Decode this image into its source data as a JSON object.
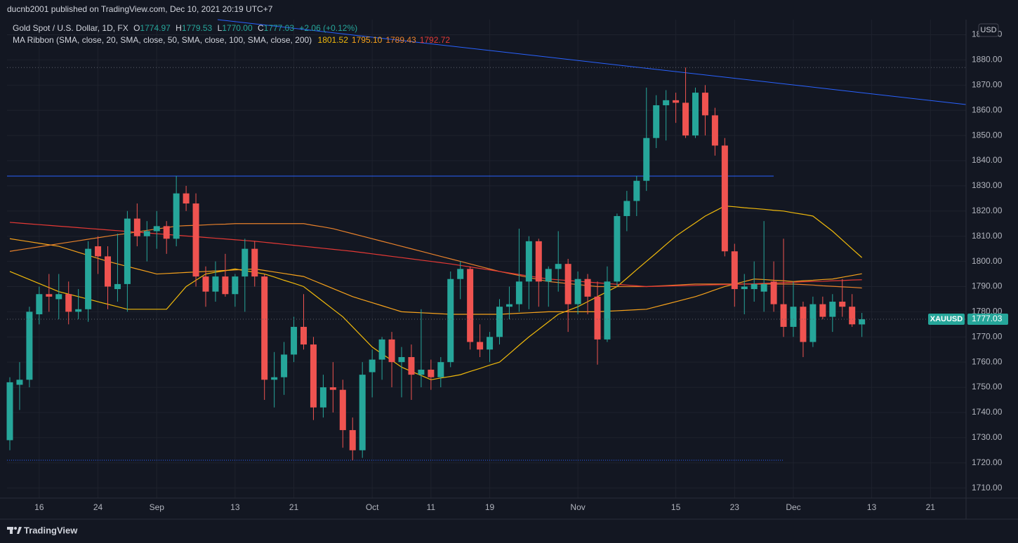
{
  "header": {
    "publisher": "ducnb2001 published on TradingView.com, Dec 10, 2021 20:19 UTC+7"
  },
  "footer": {
    "brand": "TradingView"
  },
  "price_tag": {
    "symbol": "XAUUSD",
    "label": "1777.03"
  },
  "currency": "USD",
  "chart_data": {
    "type": "candlestick",
    "title": "Gold Spot / U.S. Dollar, 1D, FX",
    "ohlc": [
      {
        "key": "O",
        "label": "1774.97"
      },
      {
        "key": "H",
        "label": "1779.53"
      },
      {
        "key": "L",
        "label": "1770.00"
      },
      {
        "key": "C",
        "label": "1777.03"
      }
    ],
    "change": "+2.06 (+0.12%)",
    "indicator": "MA Ribbon (SMA, close, 20, SMA, close, 50, SMA, close, 100, SMA, close, 200)",
    "up_color": "#26a69a",
    "down_color": "#ef5350",
    "grid": true,
    "categories": [
      null,
      null,
      null,
      "16",
      null,
      null,
      null,
      null,
      null,
      "24",
      null,
      null,
      null,
      null,
      null,
      "Sep",
      null,
      null,
      null,
      null,
      null,
      null,
      null,
      "13",
      null,
      null,
      null,
      null,
      null,
      "21",
      null,
      null,
      null,
      null,
      null,
      null,
      null,
      "Oct",
      null,
      null,
      null,
      null,
      null,
      "11",
      null,
      null,
      null,
      null,
      null,
      "19",
      null,
      null,
      null,
      null,
      null,
      null,
      null,
      null,
      "Nov",
      null,
      null,
      null,
      null,
      null,
      null,
      null,
      null,
      null,
      "15",
      null,
      null,
      null,
      null,
      null,
      "23",
      null,
      null,
      null,
      null,
      null,
      "Dec",
      null,
      null,
      null,
      null,
      null,
      null,
      null,
      "13",
      null,
      null,
      null,
      null,
      null,
      "21",
      null,
      null,
      null
    ],
    "open": [
      1729,
      1751,
      1753,
      1779,
      1787,
      1785,
      1787,
      1780,
      1781,
      1806,
      1802,
      1789,
      1791,
      1817,
      1810,
      1812,
      1814,
      1809,
      1827,
      1823,
      1794,
      1788,
      1794,
      1787,
      1794,
      1805,
      1794,
      1753,
      1754,
      1763,
      1774,
      1767,
      1742,
      1750,
      1749,
      1733,
      1725,
      1756,
      1761,
      1769,
      1760,
      1762,
      1755,
      1757,
      1754,
      1760,
      1793,
      1797,
      1768,
      1765,
      1770,
      1782,
      1783,
      1792,
      1808,
      1792,
      1797,
      1799,
      1783,
      1793,
      1786,
      1769,
      1792,
      1818,
      1824,
      1832,
      1849,
      1862,
      1864,
      1863,
      1850,
      1867,
      1858,
      1846,
      1804,
      1789,
      1789,
      1788,
      1792,
      1783,
      1774,
      1782,
      1768,
      1783,
      1778,
      1784,
      1782,
      1774.97,
      null,
      null,
      null,
      null,
      null,
      null,
      null,
      null,
      null,
      null
    ],
    "high": [
      1754,
      1760,
      1782,
      1790,
      1795,
      1795,
      1792,
      1789,
      1808,
      1810,
      1806,
      1811,
      1820,
      1823,
      1816,
      1820,
      1816,
      1834,
      1830,
      1827,
      1798,
      1800,
      1803,
      1795,
      1809,
      1808,
      1795,
      1764,
      1768,
      1778,
      1787,
      1770,
      1755,
      1760,
      1753,
      1738,
      1760,
      1765,
      1770,
      1772,
      1766,
      1767,
      1781,
      1761,
      1762,
      1796,
      1800,
      1798,
      1775,
      1772,
      1785,
      1790,
      1813,
      1810,
      1809,
      1798,
      1812,
      1801,
      1796,
      1795,
      1792,
      1798,
      1819,
      1828,
      1834,
      1869,
      1866,
      1868,
      1867,
      1877,
      1869,
      1870,
      1861,
      1849,
      1807,
      1795,
      1800,
      1816,
      1800,
      1809,
      1792,
      1784,
      1786,
      1786,
      1787,
      1793,
      1787,
      1779.53,
      null,
      null,
      null,
      null,
      null,
      null,
      null,
      null,
      null,
      null
    ],
    "low": [
      1725,
      1741,
      1750,
      1775,
      1780,
      1777,
      1775,
      1777,
      1776,
      1795,
      1781,
      1784,
      1780,
      1806,
      1800,
      1805,
      1803,
      1806,
      1820,
      1790,
      1782,
      1784,
      1786,
      1782,
      1780,
      1790,
      1745,
      1742,
      1747,
      1760,
      1765,
      1737,
      1738,
      1740,
      1726,
      1721,
      1722,
      1746,
      1753,
      1750,
      1746,
      1745,
      1750,
      1749,
      1750,
      1758,
      1785,
      1765,
      1762,
      1760,
      1767,
      1777,
      1780,
      1781,
      1782,
      1782,
      1788,
      1772,
      1779,
      1779,
      1759,
      1768,
      1790,
      1812,
      1818,
      1828,
      1845,
      1848,
      1855,
      1849,
      1849,
      1850,
      1842,
      1802,
      1782,
      1779,
      1784,
      1780,
      1780,
      1770,
      1770,
      1762,
      1766,
      1777,
      1772,
      1778,
      1774,
      1770,
      null,
      null,
      null,
      null,
      null,
      null,
      null,
      null,
      null,
      null
    ],
    "close": [
      1752,
      1753,
      1780,
      1787,
      1786,
      1787,
      1780,
      1781,
      1805,
      1802,
      1790,
      1791,
      1817,
      1810,
      1812,
      1814,
      1809,
      1827,
      1823,
      1794,
      1788,
      1794,
      1787,
      1794,
      1805,
      1794,
      1753,
      1754,
      1763,
      1774,
      1767,
      1742,
      1750,
      1749,
      1733,
      1725,
      1755,
      1761,
      1769,
      1760,
      1762,
      1755,
      1757,
      1754,
      1760,
      1793,
      1797,
      1768,
      1765,
      1770,
      1782,
      1783,
      1792,
      1808,
      1792,
      1797,
      1799,
      1783,
      1793,
      1786,
      1769,
      1792,
      1818,
      1824,
      1832,
      1849,
      1862,
      1864,
      1863,
      1850,
      1867,
      1858,
      1846,
      1804,
      1789,
      1790,
      1791,
      1791,
      1783,
      1774,
      1782,
      1768,
      1783,
      1778,
      1784,
      1782,
      1775,
      1777.03,
      null,
      null,
      null,
      null,
      null,
      null,
      null,
      null,
      null,
      null
    ],
    "series": [
      {
        "name": "SMA 20",
        "color": "#f0b90b",
        "legend_value": "1801.52",
        "values": [
          1796,
          1794.4,
          1792.8,
          1791.2,
          1789.6,
          1788,
          1787,
          1786,
          1785,
          1784,
          1783,
          1782,
          1781,
          1781,
          1781,
          1781,
          1781,
          1785.5,
          1790,
          1792.5,
          1795,
          1795.7,
          1796.3,
          1797,
          1796.3,
          1795.7,
          1795,
          1793.8,
          1792.5,
          1791.3,
          1790,
          1787,
          1784,
          1781,
          1778,
          1774,
          1770,
          1766,
          1763.3,
          1760.7,
          1758,
          1756.3,
          1754.7,
          1753,
          1753.7,
          1754.3,
          1755,
          1756.3,
          1757.5,
          1758.8,
          1760,
          1763.3,
          1766.7,
          1770,
          1773,
          1776,
          1779,
          1780.5,
          1782,
          1784,
          1786,
          1788,
          1790,
          1793.3,
          1796.7,
          1800,
          1803.3,
          1806.7,
          1810,
          1812.7,
          1815.3,
          1818,
          1820,
          1822,
          1821.7,
          1821.3,
          1821,
          1820.7,
          1820.3,
          1820,
          1819.3,
          1818.7,
          1818,
          1815,
          1812,
          1808.5,
          1805,
          1801.52,
          null,
          null,
          null,
          null,
          null,
          null,
          null,
          null,
          null,
          null
        ]
      },
      {
        "name": "SMA 50",
        "color": "#f7a21b",
        "legend_value": "1795.10",
        "values": [
          1809,
          1808.4,
          1807.8,
          1807.2,
          1806.6,
          1806,
          1804.8,
          1803.6,
          1802.4,
          1801.2,
          1800,
          1799,
          1798,
          1797,
          1796,
          1795,
          1795.2,
          1795.4,
          1795.6,
          1795.8,
          1796,
          1796.2,
          1796.4,
          1796.6,
          1796.8,
          1797,
          1796.4,
          1795.8,
          1795.2,
          1794.6,
          1794,
          1792.4,
          1790.8,
          1789.2,
          1787.6,
          1786,
          1784.8,
          1783.6,
          1782.4,
          1781.2,
          1780,
          1779.8,
          1779.6,
          1779.4,
          1779.2,
          1779,
          1779,
          1779,
          1779,
          1779,
          1779,
          1779.2,
          1779.4,
          1779.6,
          1779.8,
          1780,
          1780,
          1780,
          1780,
          1780,
          1780,
          1780.2,
          1780.4,
          1780.6,
          1780.8,
          1781,
          1782,
          1783,
          1784,
          1785,
          1786,
          1787.3,
          1788.7,
          1790,
          1791,
          1792,
          1793,
          1792.8,
          1792.5,
          1792.3,
          1792,
          1792.3,
          1792.5,
          1792.8,
          1793,
          1793.7,
          1794.4,
          1795.1,
          null,
          null,
          null,
          null,
          null,
          null,
          null,
          null,
          null,
          null
        ]
      },
      {
        "name": "SMA 100",
        "color": "#e8812b",
        "legend_value": "1789.43",
        "values": [
          1804,
          1804.6,
          1805.2,
          1805.8,
          1806.4,
          1807,
          1807.6,
          1808.2,
          1808.8,
          1809.4,
          1810,
          1810.6,
          1811.1,
          1811.7,
          1812.3,
          1812.9,
          1813.4,
          1814,
          1814.2,
          1814.3,
          1814.5,
          1814.7,
          1814.8,
          1815,
          1815,
          1815,
          1815,
          1815,
          1815,
          1815,
          1815,
          1814.3,
          1813.7,
          1813,
          1812,
          1811,
          1810,
          1809,
          1808,
          1807,
          1806,
          1805,
          1804,
          1803,
          1802,
          1801,
          1800,
          1799,
          1798,
          1797,
          1796,
          1795.2,
          1794.4,
          1793.6,
          1792.8,
          1792,
          1791.6,
          1791.2,
          1790.8,
          1790.4,
          1790,
          1790,
          1790,
          1790,
          1790,
          1790,
          1790.2,
          1790.4,
          1790.6,
          1790.8,
          1791,
          1791,
          1791,
          1791,
          1791,
          1791,
          1791,
          1791,
          1791,
          1791,
          1791,
          1790.8,
          1790.6,
          1790.3,
          1790.1,
          1789.9,
          1789.7,
          1789.43,
          null,
          null,
          null,
          null,
          null,
          null,
          null,
          null,
          null,
          null
        ]
      },
      {
        "name": "SMA 200",
        "color": "#e53935",
        "legend_value": "1792.72",
        "values": [
          1815.5,
          1815.2,
          1814.9,
          1814.6,
          1814.3,
          1814,
          1813.7,
          1813.4,
          1813.1,
          1812.8,
          1812.5,
          1812.2,
          1811.9,
          1811.6,
          1811.3,
          1811,
          1810.7,
          1810.4,
          1810.1,
          1809.8,
          1809.5,
          1809.2,
          1808.9,
          1808.6,
          1808.3,
          1808,
          1807.6,
          1807.2,
          1806.8,
          1806.4,
          1806,
          1805.6,
          1805.2,
          1804.8,
          1804.4,
          1804,
          1803.5,
          1803,
          1802.5,
          1802,
          1801.5,
          1801,
          1800.5,
          1800,
          1799.5,
          1799,
          1798.4,
          1797.8,
          1797.2,
          1796.6,
          1796,
          1795.4,
          1794.8,
          1794.2,
          1793.6,
          1793,
          1792.7,
          1792.4,
          1792.1,
          1791.8,
          1791.5,
          1791.2,
          1790.9,
          1790.6,
          1790.3,
          1790,
          1790.1,
          1790.2,
          1790.3,
          1790.4,
          1790.5,
          1790.6,
          1790.7,
          1790.8,
          1790.9,
          1791,
          1791.1,
          1791.3,
          1791.4,
          1791.6,
          1791.7,
          1791.9,
          1792,
          1792.1,
          1792.3,
          1792.4,
          1792.6,
          1792.72,
          null,
          null,
          null,
          null,
          null,
          null,
          null,
          null,
          null,
          null
        ]
      }
    ],
    "ylim": [
      1706,
      1896
    ],
    "yticks": [
      {
        "value": 1710,
        "label": "1710.00"
      },
      {
        "value": 1720,
        "label": "1720.00"
      },
      {
        "value": 1730,
        "label": "1730.00"
      },
      {
        "value": 1740,
        "label": "1740.00"
      },
      {
        "value": 1750,
        "label": "1750.00"
      },
      {
        "value": 1760,
        "label": "1760.00"
      },
      {
        "value": 1770,
        "label": "1770.00"
      },
      {
        "value": 1780,
        "label": "1780.00"
      },
      {
        "value": 1790,
        "label": "1790.00"
      },
      {
        "value": 1800,
        "label": "1800.00"
      },
      {
        "value": 1810,
        "label": "1810.00"
      },
      {
        "value": 1820,
        "label": "1820.00"
      },
      {
        "value": 1830,
        "label": "1830.00"
      },
      {
        "value": 1840,
        "label": "1840.00"
      },
      {
        "value": 1850,
        "label": "1850.00"
      },
      {
        "value": 1860,
        "label": "1860.00"
      },
      {
        "value": 1870,
        "label": "1870.00"
      },
      {
        "value": 1880,
        "label": "1880.00"
      },
      {
        "value": 1890,
        "label": "1890.00"
      }
    ]
  }
}
